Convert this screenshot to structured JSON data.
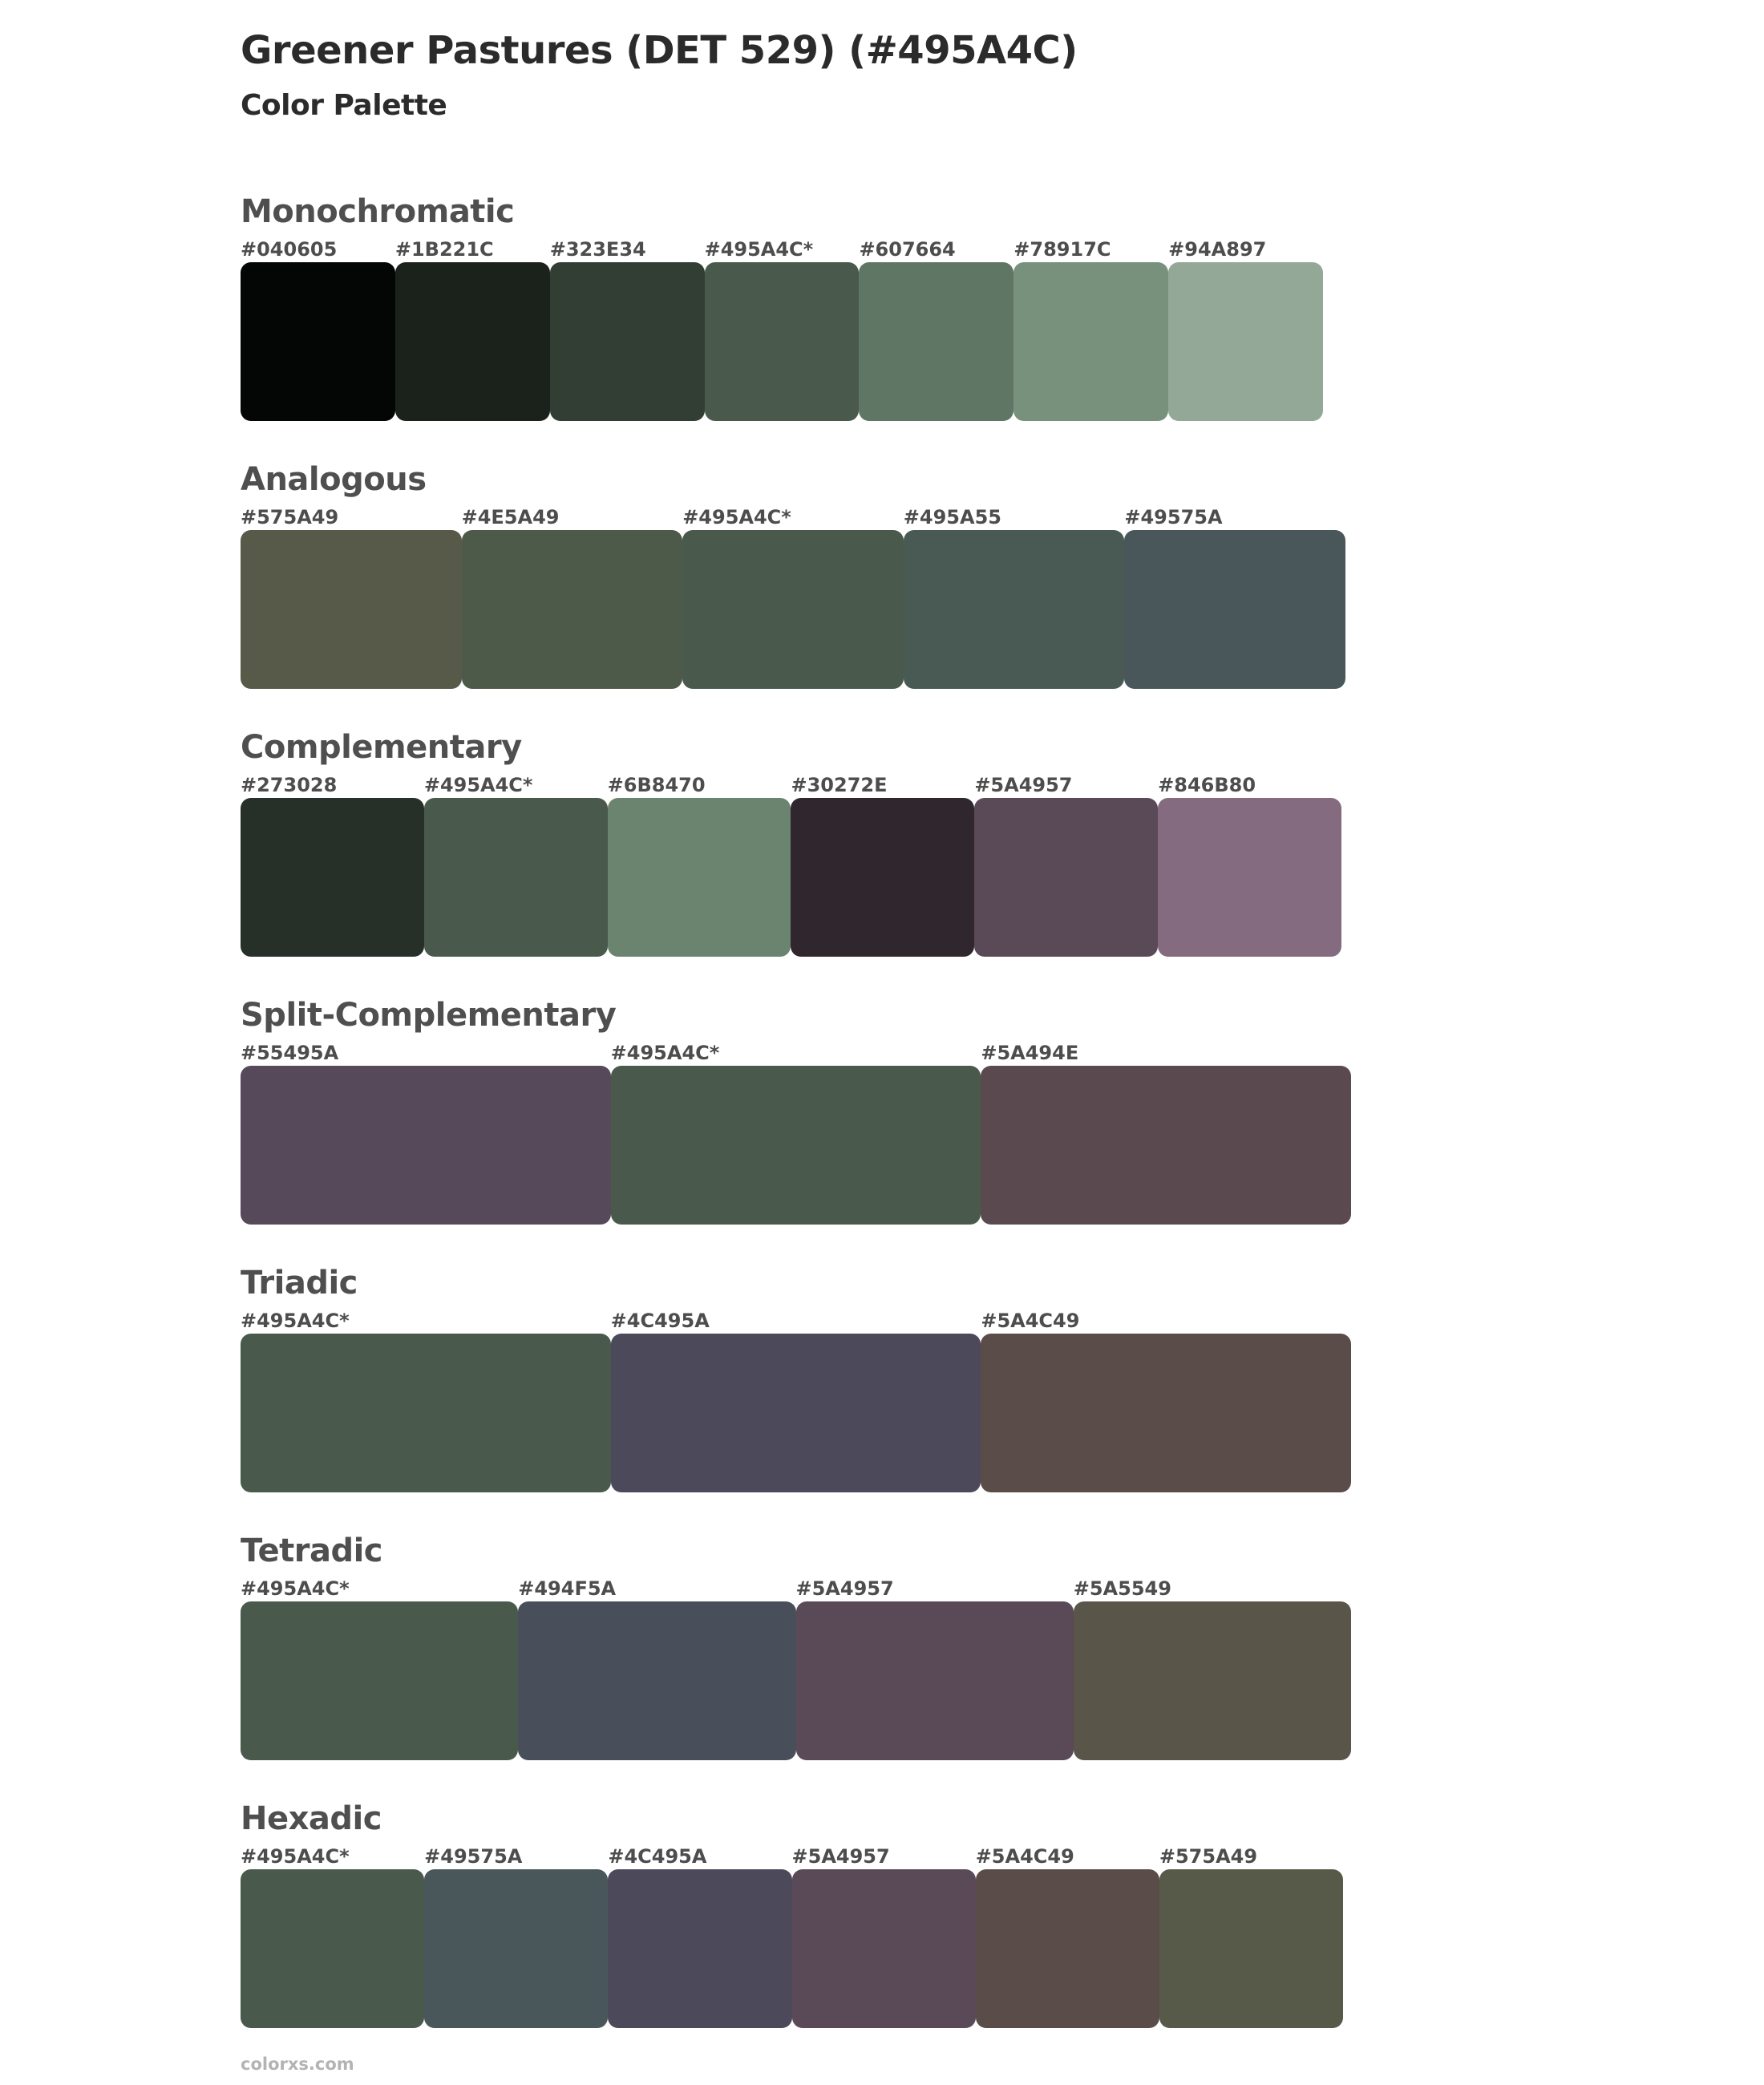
{
  "page": {
    "title": "Greener Pastures (DET 529) (#495A4C)",
    "subtitle": "Color Palette",
    "footer": "colorxs.com",
    "base_color": "#495A4C"
  },
  "sections": [
    {
      "name": "Monochromatic",
      "swatches": [
        {
          "label": "#040605",
          "color": "#040605"
        },
        {
          "label": "#1B221C",
          "color": "#1B221C"
        },
        {
          "label": "#323E34",
          "color": "#323E34"
        },
        {
          "label": "#495A4C*",
          "color": "#495A4C"
        },
        {
          "label": "#607664",
          "color": "#607664"
        },
        {
          "label": "#78917C",
          "color": "#78917C"
        },
        {
          "label": "#94A897",
          "color": "#94A897"
        }
      ]
    },
    {
      "name": "Analogous",
      "swatches": [
        {
          "label": "#575A49",
          "color": "#575A49"
        },
        {
          "label": "#4E5A49",
          "color": "#4E5A49"
        },
        {
          "label": "#495A4C*",
          "color": "#495A4C"
        },
        {
          "label": "#495A55",
          "color": "#495A55"
        },
        {
          "label": "#49575A",
          "color": "#49575A"
        }
      ]
    },
    {
      "name": "Complementary",
      "swatches": [
        {
          "label": "#273028",
          "color": "#273028"
        },
        {
          "label": "#495A4C*",
          "color": "#495A4C"
        },
        {
          "label": "#6B8470",
          "color": "#6B8470"
        },
        {
          "label": "#30272E",
          "color": "#30272E"
        },
        {
          "label": "#5A4957",
          "color": "#5A4957"
        },
        {
          "label": "#846B80",
          "color": "#846B80"
        }
      ]
    },
    {
      "name": "Split-Complementary",
      "swatches": [
        {
          "label": "#55495A",
          "color": "#55495A"
        },
        {
          "label": "#495A4C*",
          "color": "#495A4C"
        },
        {
          "label": "#5A494E",
          "color": "#5A494E"
        }
      ]
    },
    {
      "name": "Triadic",
      "swatches": [
        {
          "label": "#495A4C*",
          "color": "#495A4C"
        },
        {
          "label": "#4C495A",
          "color": "#4C495A"
        },
        {
          "label": "#5A4C49",
          "color": "#5A4C49"
        }
      ]
    },
    {
      "name": "Tetradic",
      "swatches": [
        {
          "label": "#495A4C*",
          "color": "#495A4C"
        },
        {
          "label": "#494F5A",
          "color": "#494F5A"
        },
        {
          "label": "#5A4957",
          "color": "#5A4957"
        },
        {
          "label": "#5A5549",
          "color": "#5A5549"
        }
      ]
    },
    {
      "name": "Hexadic",
      "swatches": [
        {
          "label": "#495A4C*",
          "color": "#495A4C"
        },
        {
          "label": "#49575A",
          "color": "#49575A"
        },
        {
          "label": "#4C495A",
          "color": "#4C495A"
        },
        {
          "label": "#5A4957",
          "color": "#5A4957"
        },
        {
          "label": "#5A4C49",
          "color": "#5A4C49"
        },
        {
          "label": "#575A49",
          "color": "#575A49"
        }
      ]
    }
  ]
}
